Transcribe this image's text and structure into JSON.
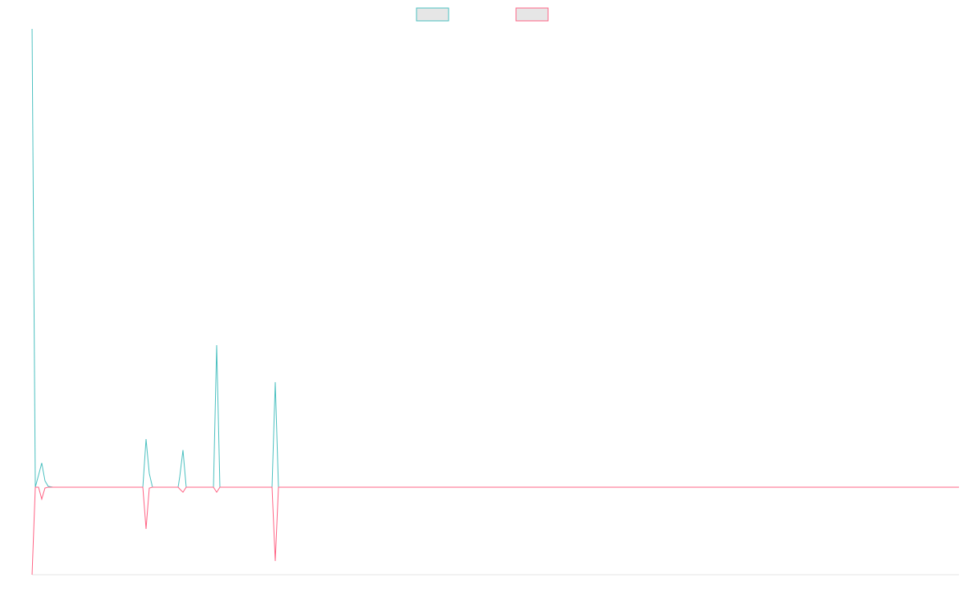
{
  "chart_data": {
    "type": "line",
    "legend": "top",
    "x": [
      0,
      4,
      8,
      12,
      16,
      20,
      26,
      138,
      142,
      146,
      150,
      182,
      184,
      188,
      192,
      226,
      230,
      234,
      299,
      303,
      307,
      1155
    ],
    "xlim": [
      0,
      1155
    ],
    "ylim": [
      -19.1,
      100
    ],
    "grid": false,
    "series": [
      {
        "color": "#4bc0c0",
        "values": [
          100,
          0,
          2.6,
          5.3,
          1.4,
          0.2,
          0,
          0,
          10.5,
          3.0,
          0,
          0,
          2.3,
          8.1,
          0,
          0,
          31,
          0,
          0,
          22.9,
          0,
          0
        ]
      },
      {
        "color": "#ff6384",
        "values": [
          -19.1,
          0,
          0,
          -2.6,
          -0.2,
          0,
          0,
          0,
          -9.1,
          -0.2,
          0,
          0,
          -0.4,
          -1.1,
          0,
          0,
          -1.1,
          0,
          0,
          -16.1,
          0,
          0
        ]
      }
    ]
  }
}
